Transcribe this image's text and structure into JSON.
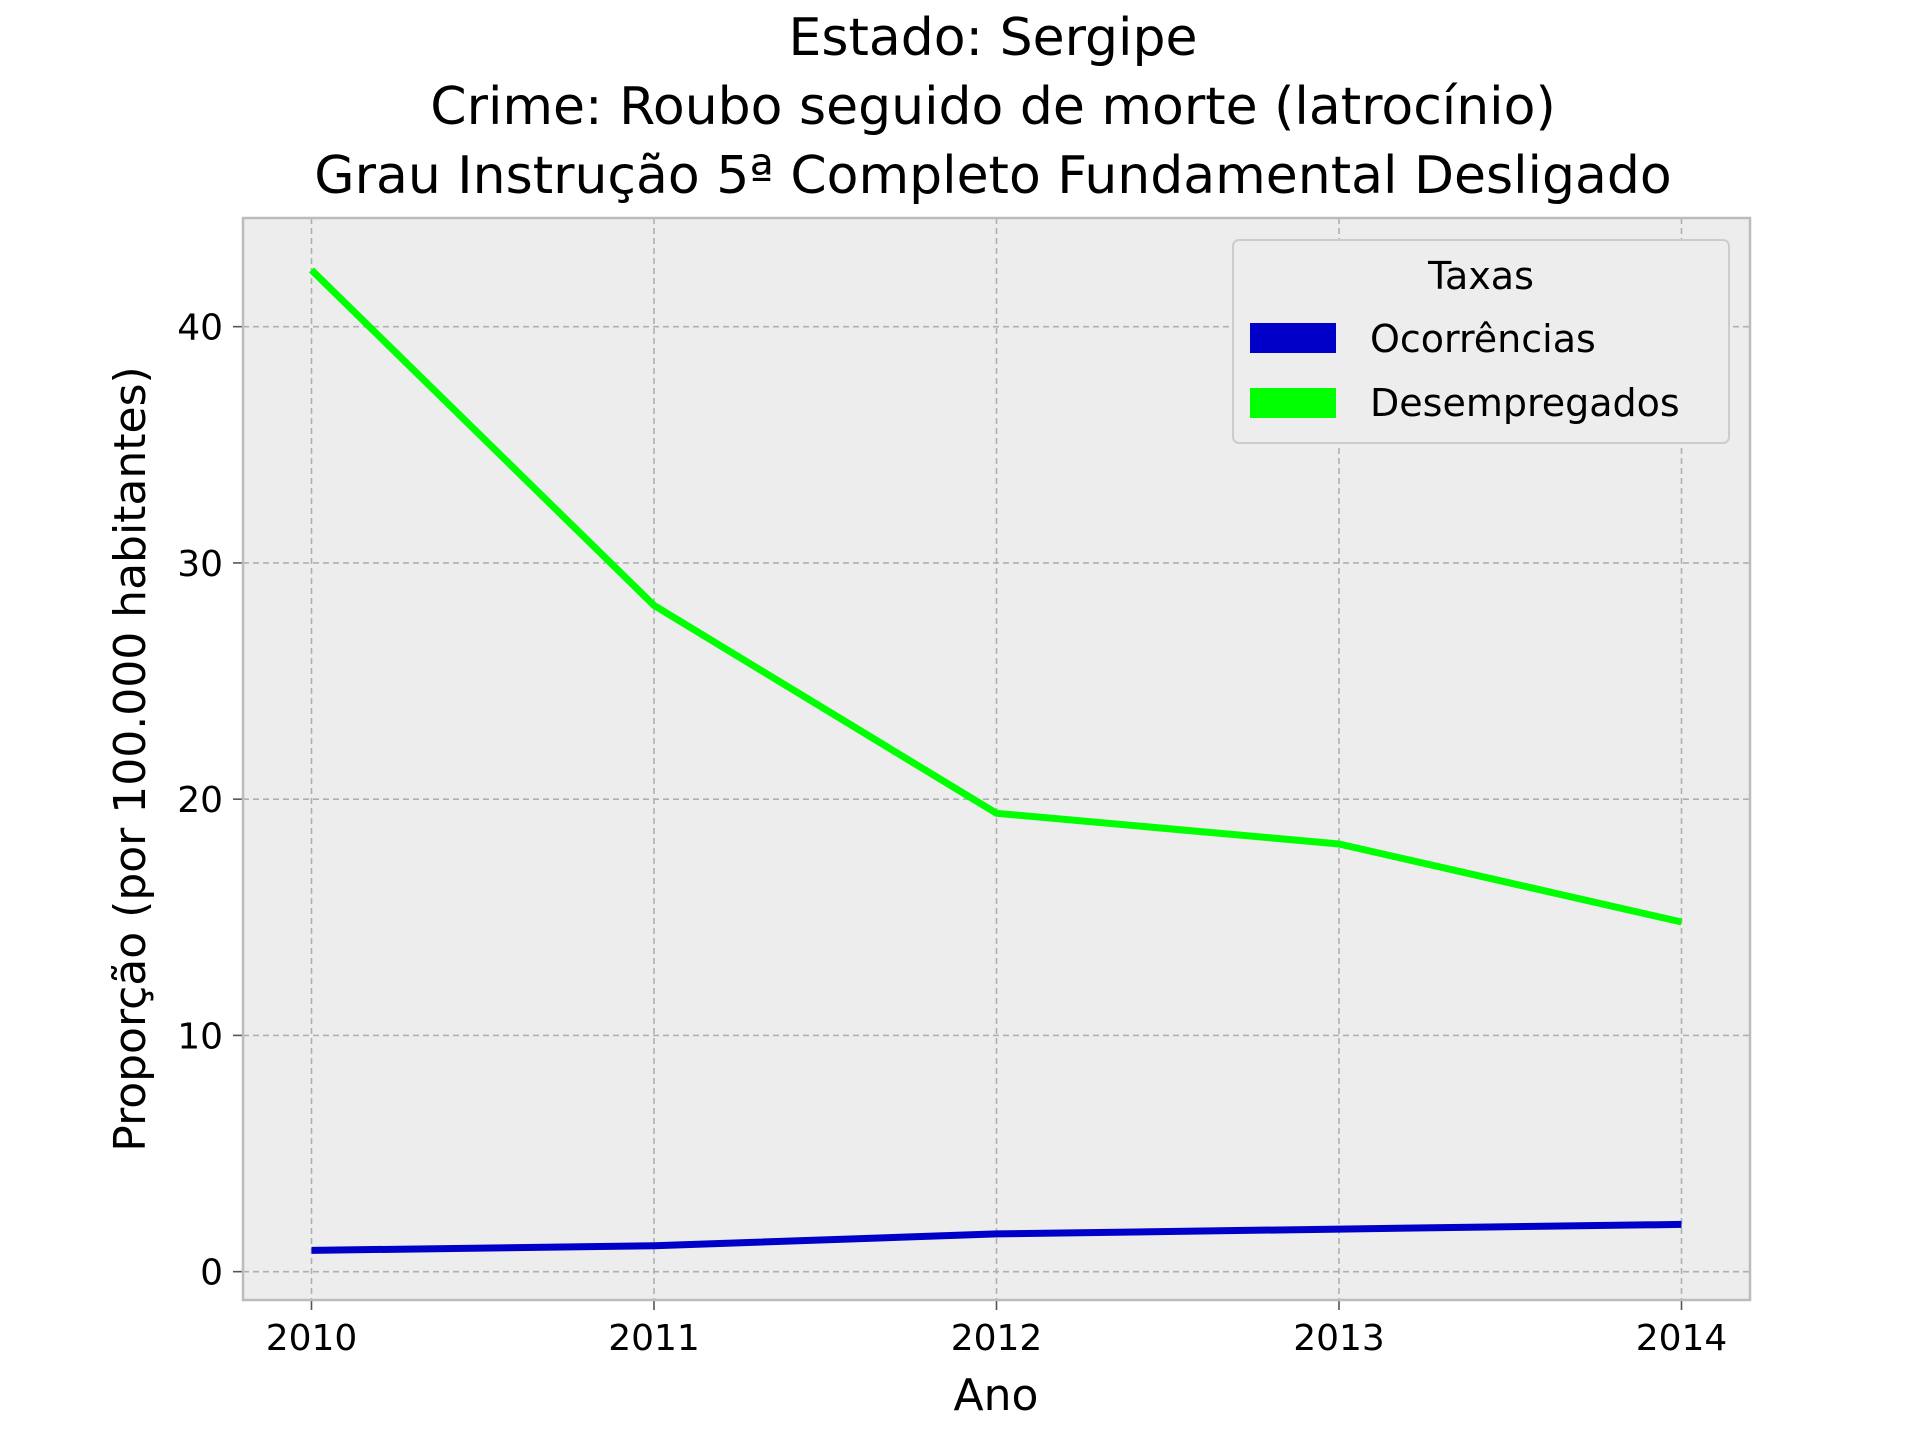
{
  "chart_data": {
    "type": "line",
    "title_lines": [
      "Estado: Sergipe",
      "Crime: Roubo seguido de morte (latrocínio)",
      "Grau Instrução  5ª Completo Fundamental   Desligado"
    ],
    "xlabel": "Ano",
    "ylabel": "Proporção (por 100.000 habitantes)",
    "x": [
      2010,
      2011,
      2012,
      2013,
      2014
    ],
    "x_tick_labels": [
      "2010",
      "2011",
      "2012",
      "2013",
      "2014"
    ],
    "y_ticks": [
      0,
      10,
      20,
      30,
      40
    ],
    "y_tick_labels": [
      "0",
      "10",
      "20",
      "30",
      "40"
    ],
    "xlim": [
      2009.8,
      2014.2
    ],
    "ylim": [
      -1.2,
      44.6
    ],
    "grid": true,
    "background": "#ededed",
    "legend": {
      "title": "Taxas",
      "placement": "top-right"
    },
    "series": [
      {
        "name": "Ocorrências",
        "color": "#0000c8",
        "values": [
          0.9,
          1.1,
          1.6,
          1.8,
          2.0
        ]
      },
      {
        "name": "Desempregados",
        "color": "#00ff00",
        "values": [
          42.4,
          28.2,
          19.4,
          18.1,
          14.8
        ]
      }
    ]
  }
}
